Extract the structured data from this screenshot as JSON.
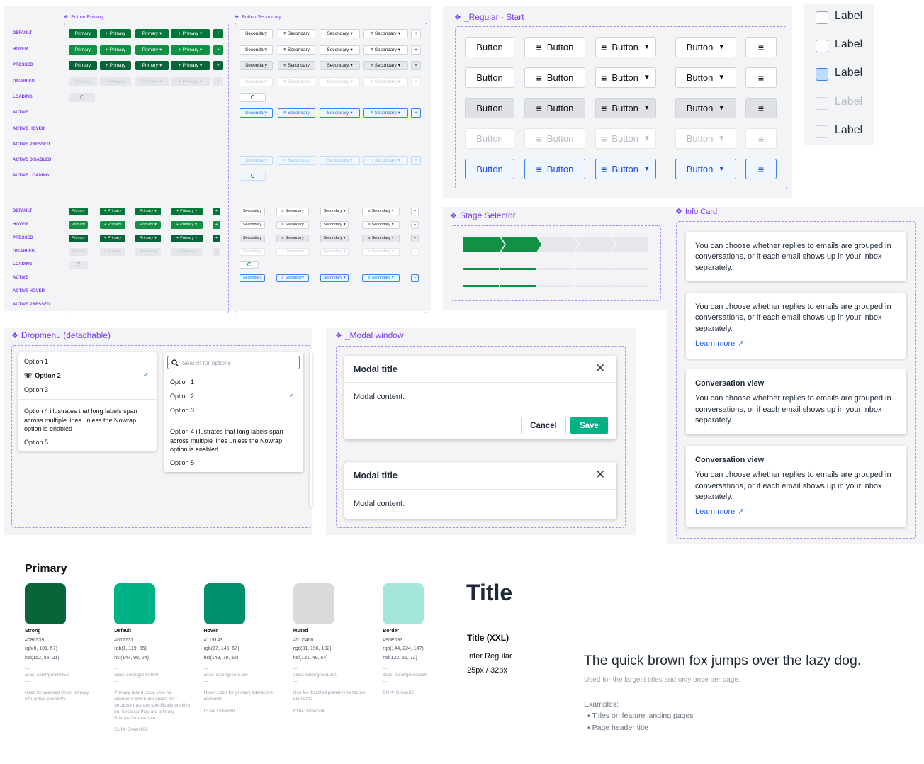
{
  "btn_primary_title": "Button Primary",
  "btn_secondary_title": "Button Secondary",
  "states_top": [
    "DEFAULT",
    "HOVER",
    "PRESSED",
    "DISABLED",
    "LOADING",
    "ACTIVE",
    "ACTIVE HOVER",
    "ACTIVE PRESSED",
    "ACTIVE DISABLED",
    "ACTIVE LOADING"
  ],
  "states_bottom": [
    "DEFAULT",
    "HOVER",
    "PRESSED",
    "DISABLED",
    "LOADING",
    "ACTIVE",
    "ACTIVE HOVER",
    "ACTIVE PRESSED"
  ],
  "primary_label": "Primary",
  "secondary_label": "Secondary",
  "regular": {
    "title": "_Regular - Start",
    "button_label": "Button"
  },
  "checkbox": {
    "labels": [
      "Label",
      "Label",
      "Label",
      "Label",
      "Label"
    ]
  },
  "stage": {
    "title": "Stage Selector",
    "stages_done": 2,
    "stages_total": 5
  },
  "info": {
    "title": "Info Card",
    "body": "You can choose whether replies to emails are grouped in conversations, or if each email shows up in your inbox separately.",
    "card_title": "Conversation view",
    "learn_more": "Learn more"
  },
  "dropmenu": {
    "title": "Dropmenu (detachable)",
    "search_placeholder": "Search for options",
    "options": [
      "Option 1",
      "Option 2",
      "Option 3"
    ],
    "long_option": "Option 4 illustrates that long labels span across multiple lines unless the Nowrap option is enabled",
    "option5": "Option 5"
  },
  "modal": {
    "title": "_Modal window",
    "modal_title": "Modal title",
    "content": "Modal content.",
    "cancel": "Cancel",
    "save": "Save"
  },
  "colors": {
    "heading": "Primary",
    "swatches": [
      {
        "name": "Strong",
        "hex": "#086539",
        "rgb": "rgb(8, 101, 57)",
        "hsl": "hsl(152, 85, 21)",
        "sep": "---",
        "alias": "alias: color/green/850",
        "desc": "Used for pressed down primary interactive elements.",
        "cui": ""
      },
      {
        "name": "Default",
        "hex": "#017737",
        "rgb": "rgb(1, 119, 55)",
        "hsl": "hsl(147, 98, 24)",
        "sep": "---",
        "alias": "alias: color/green/800",
        "desc": "Primary brand color. Use for elements which are green not because they are specifically positive but because they are primary. Buttons for example.",
        "cui": "CUI4: Green100"
      },
      {
        "name": "Hover",
        "hex": "#119143",
        "rgb": "rgb(17, 145, 67)",
        "hsl": "hsl(143, 79, 32)",
        "sep": "---",
        "alias": "alias: color/green/750",
        "desc": "Hover color for primary interactive elements.",
        "cui": "CUI4: Green88"
      },
      {
        "name": "Muted",
        "hex": "#51C466",
        "rgb": "rgb(81, 196, 102)",
        "hsl": "hsl(131, 49, 54)",
        "sep": "---",
        "alias": "alias: color/green/300",
        "desc": "Use for disabled primary interactive elements.",
        "cui": "CUI4: Green64"
      },
      {
        "name": "Border",
        "hex": "#90E093",
        "rgb": "rgb(144, 224, 147)",
        "hsl": "hsl(122, 56, 72)",
        "sep": "---",
        "alias": "alias: color/green/250",
        "desc": "",
        "cui": "CUI4: Green32"
      }
    ]
  },
  "typo": {
    "title": "Title",
    "name": "Title (XXL)",
    "font": "Inter Regular",
    "size": "25px / 32px",
    "sample": "The quick brown fox jumps over the lazy dog.",
    "usage": "Used for the largest titles and only once per page.",
    "examples_label": "Examples:",
    "examples": [
      "Titles on feature landing pages",
      "Page header title"
    ]
  }
}
